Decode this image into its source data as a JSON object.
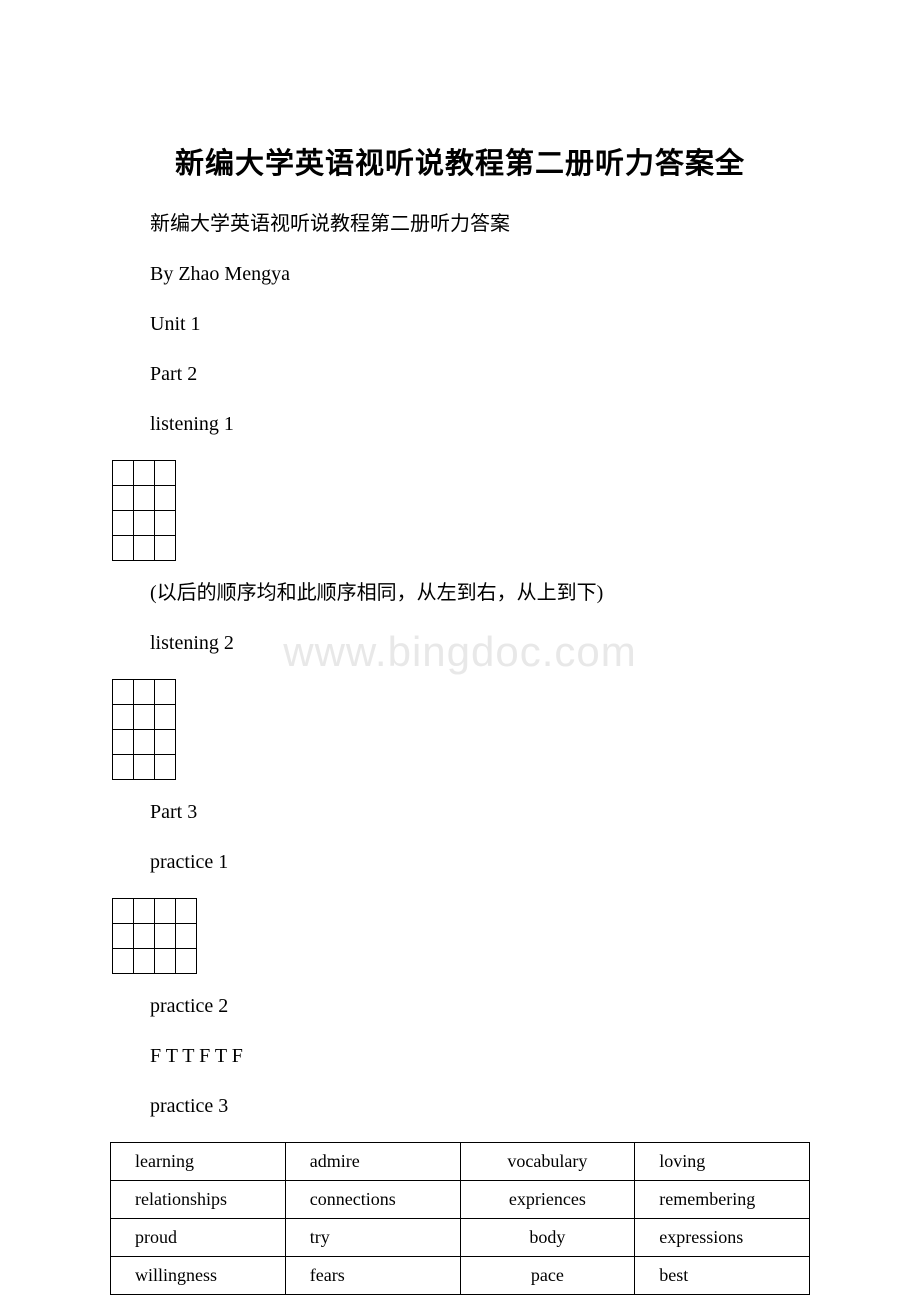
{
  "title": "新编大学英语视听说教程第二册听力答案全",
  "lines": {
    "l1": "新编大学英语视听说教程第二册听力答案",
    "l2": "By Zhao Mengya",
    "l3": "Unit 1",
    "l4": "Part 2",
    "l5": "listening 1",
    "l6": " (以后的顺序均和此顺序相同，从左到右，从上到下)",
    "l7": "listening 2",
    "l8": "Part 3",
    "l9": "practice 1",
    "l10": "practice 2",
    "l11": " F T T F T F",
    "l12": "practice 3"
  },
  "watermark": "www.bingdoc.com",
  "grids": {
    "g1": {
      "rows": 4,
      "cols": 3
    },
    "g2": {
      "rows": 4,
      "cols": 3
    },
    "g3": {
      "rows": 3,
      "cols": 4
    }
  },
  "wordTable": {
    "rows": [
      [
        "learning",
        "admire",
        "vocabulary",
        "loving"
      ],
      [
        "relationships",
        "connections",
        "expriences",
        "remembering"
      ],
      [
        "proud",
        "try",
        "body",
        "expressions"
      ],
      [
        "willingness",
        "fears",
        "pace",
        "best"
      ]
    ]
  },
  "colors": {
    "background": "#ffffff",
    "text": "#000000",
    "watermark": "#e8e8e8",
    "border": "#000000"
  }
}
